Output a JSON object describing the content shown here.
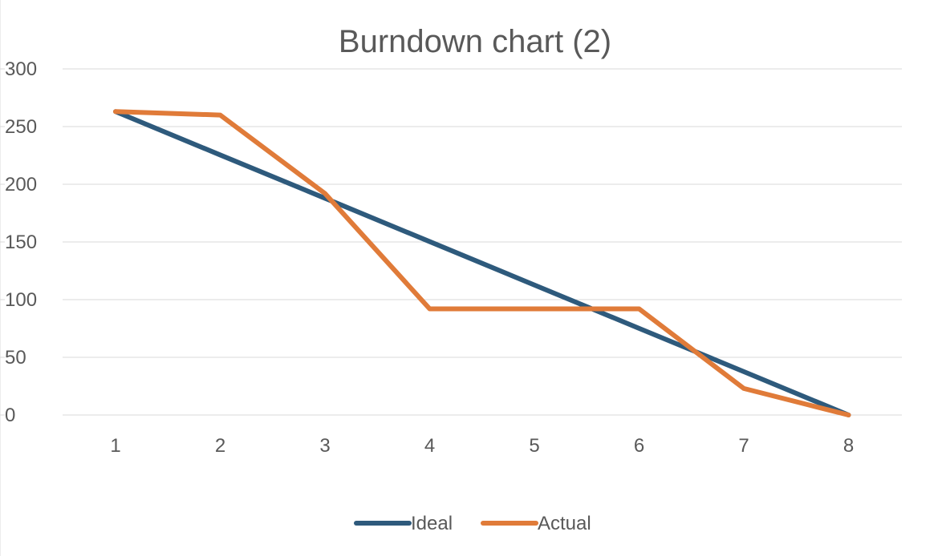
{
  "chart_data": {
    "type": "line",
    "title": "Burndown chart (2)",
    "xlabel": "",
    "ylabel": "",
    "categories": [
      "1",
      "2",
      "3",
      "4",
      "5",
      "6",
      "7",
      "8"
    ],
    "ylim": [
      0,
      300
    ],
    "yticks": [
      0,
      50,
      100,
      150,
      200,
      250,
      300
    ],
    "grid": true,
    "legend_position": "bottom",
    "series": [
      {
        "name": "Ideal",
        "color": "#2e5a7c",
        "values": [
          263,
          225.4,
          187.9,
          150.3,
          112.7,
          75.1,
          37.6,
          0
        ]
      },
      {
        "name": "Actual",
        "color": "#e07b39",
        "values": [
          263,
          260,
          192,
          92,
          92,
          92,
          23,
          0
        ]
      }
    ]
  }
}
